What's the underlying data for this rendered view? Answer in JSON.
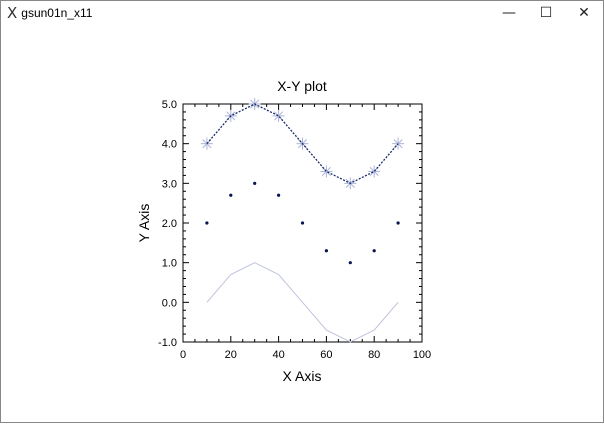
{
  "window": {
    "title": "gsun01n_x11",
    "icon": "x11-icon",
    "minimize": "—",
    "maximize": "☐",
    "close": "✕"
  },
  "chart_data": {
    "type": "line",
    "title": "X-Y plot",
    "xlabel": "X Axis",
    "ylabel": "Y Axis",
    "xlim": [
      0,
      100
    ],
    "ylim": [
      -1.0,
      5.0
    ],
    "xticks": [
      "0",
      "20",
      "40",
      "60",
      "80",
      "100"
    ],
    "yticks": [
      "-1.0",
      "0.0",
      "1.0",
      "2.0",
      "3.0",
      "4.0",
      "5.0"
    ],
    "grid": false,
    "x": [
      10,
      20,
      30,
      40,
      50,
      60,
      70,
      80,
      90
    ],
    "series": [
      {
        "values": [
          4.0,
          4.7,
          5.0,
          4.7,
          4.0,
          3.3,
          3.0,
          3.3,
          4.0
        ],
        "style": "dotted-line-with-star-markers",
        "color": "#1a2a6c",
        "marker_color": "#aab4d8"
      },
      {
        "values": [
          2.0,
          2.7,
          3.0,
          2.7,
          2.0,
          1.3,
          1.0,
          1.3,
          2.0
        ],
        "style": "dot-markers",
        "color": "#0a1450"
      },
      {
        "values": [
          0.0,
          0.7,
          1.0,
          0.7,
          0.0,
          -0.7,
          -1.0,
          -0.7,
          0.0
        ],
        "style": "solid-line",
        "color": "#c0c4dc"
      }
    ]
  }
}
